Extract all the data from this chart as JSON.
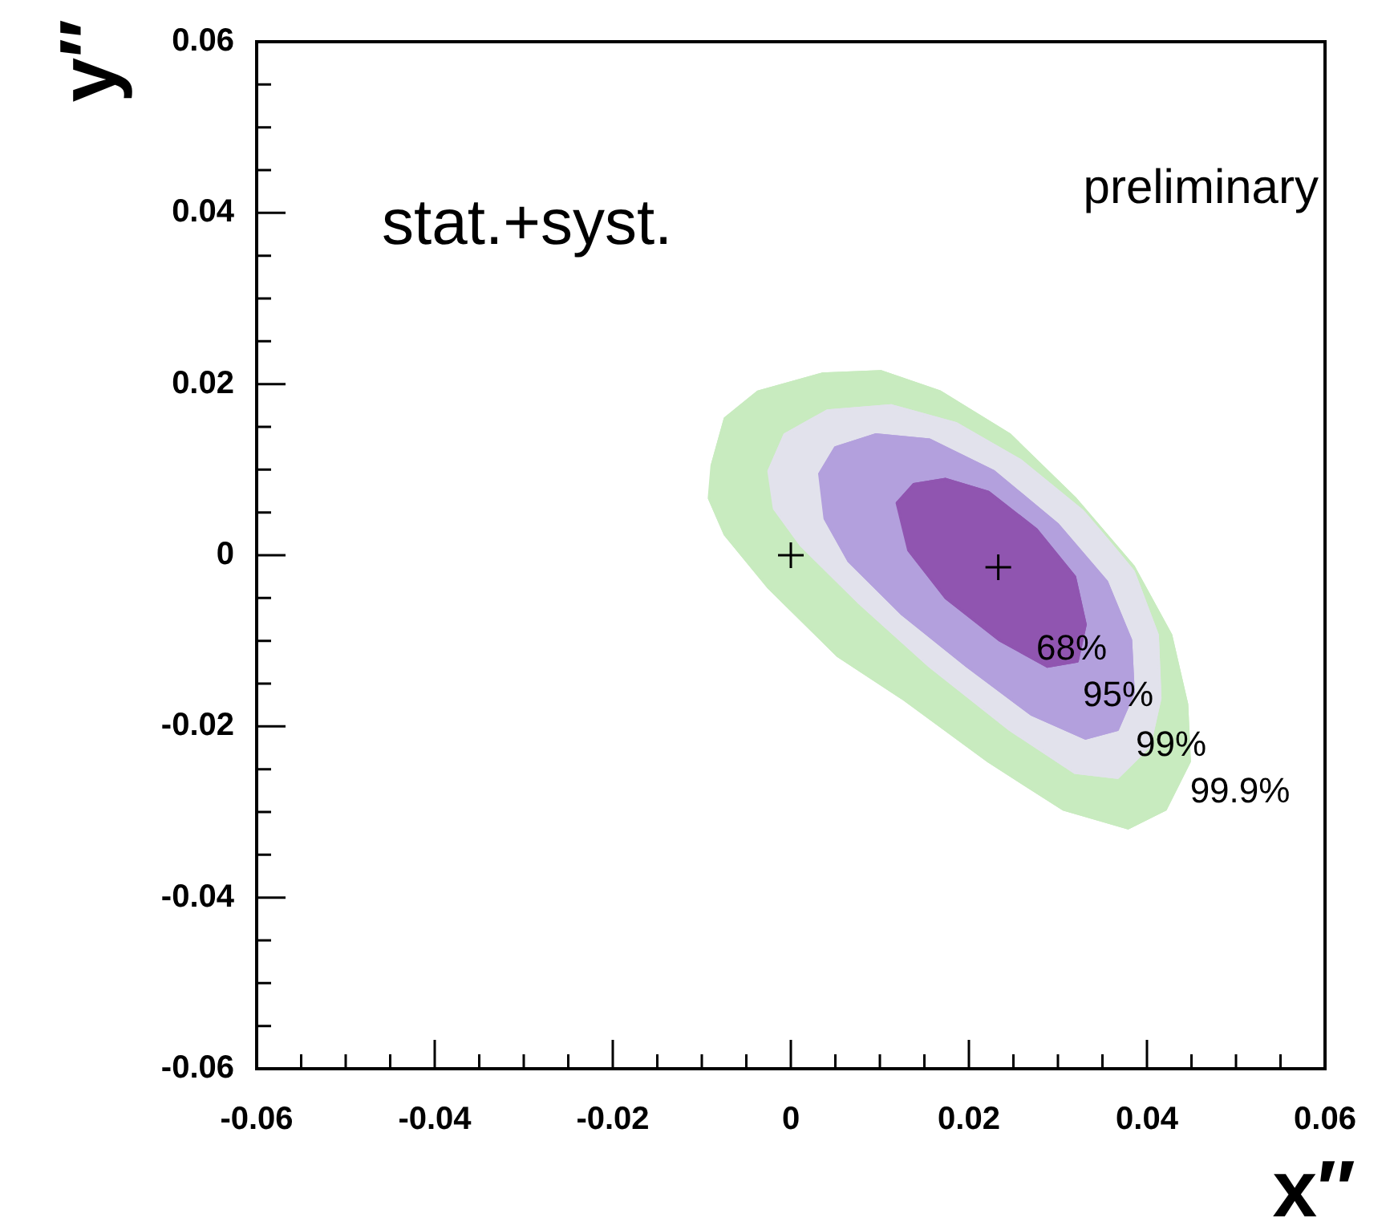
{
  "chart_data": {
    "type": "area",
    "xlabel": "x′′",
    "ylabel": "y′′",
    "xlim": [
      -0.06,
      0.06
    ],
    "ylim": [
      -0.06,
      0.06
    ],
    "xticks": [
      -0.06,
      {
        "value": -0.055,
        "label": null
      },
      {
        "value": -0.05,
        "label": null
      },
      {
        "value": -0.045,
        "label": null
      },
      -0.04,
      {
        "value": -0.035,
        "label": null
      },
      {
        "value": -0.03,
        "label": null
      },
      {
        "value": -0.025,
        "label": null
      },
      -0.02,
      {
        "value": -0.015,
        "label": null
      },
      {
        "value": -0.01,
        "label": null
      },
      {
        "value": -0.005,
        "label": null
      },
      0,
      {
        "value": 0.005,
        "label": null
      },
      {
        "value": 0.01,
        "label": null
      },
      {
        "value": 0.015,
        "label": null
      },
      0.02,
      {
        "value": 0.025,
        "label": null
      },
      {
        "value": 0.03,
        "label": null
      },
      {
        "value": 0.035,
        "label": null
      },
      0.04,
      {
        "value": 0.045,
        "label": null
      },
      {
        "value": 0.05,
        "label": null
      },
      {
        "value": 0.055,
        "label": null
      },
      0.06
    ],
    "yticks": [
      -0.06,
      {
        "value": -0.055,
        "label": null
      },
      {
        "value": -0.05,
        "label": null
      },
      {
        "value": -0.045,
        "label": null
      },
      -0.04,
      {
        "value": -0.035,
        "label": null
      },
      {
        "value": -0.03,
        "label": null
      },
      {
        "value": -0.025,
        "label": null
      },
      -0.02,
      {
        "value": -0.015,
        "label": null
      },
      {
        "value": -0.01,
        "label": null
      },
      {
        "value": -0.005,
        "label": null
      },
      0,
      {
        "value": 0.005,
        "label": null
      },
      {
        "value": 0.01,
        "label": null
      },
      {
        "value": 0.015,
        "label": null
      },
      0.02,
      {
        "value": 0.025,
        "label": null
      },
      {
        "value": 0.03,
        "label": null
      },
      {
        "value": 0.035,
        "label": null
      },
      0.04,
      {
        "value": 0.045,
        "label": null
      },
      {
        "value": 0.05,
        "label": null
      },
      {
        "value": 0.055,
        "label": null
      },
      0.06
    ],
    "grid": false,
    "legend": false,
    "series": [
      {
        "color": "#c8ebbf",
        "x": [
          -0.0089,
          -0.0074,
          -0.0037,
          0.0035,
          0.0101,
          0.0168,
          0.0246,
          0.0319,
          0.0385,
          0.0427,
          0.0445,
          0.0448,
          0.0421,
          0.0379,
          0.0306,
          0.0222,
          0.0125,
          0.0053,
          -0.0025,
          -0.0074,
          -0.0092
        ],
        "values": [
          0.0104,
          0.016,
          0.0191,
          0.0212,
          0.0215,
          0.0191,
          0.0141,
          0.0067,
          -0.0013,
          -0.0093,
          -0.0174,
          -0.0241,
          -0.0297,
          -0.0319,
          -0.0297,
          -0.0241,
          -0.0167,
          -0.0118,
          -0.0038,
          0.0024,
          0.0067
        ]
      },
      {
        "color": "#e2e2ec",
        "x": [
          -0.0025,
          -0.0007,
          0.0041,
          0.0113,
          0.0186,
          0.0258,
          0.0331,
          0.0385,
          0.0412,
          0.0415,
          0.0403,
          0.0367,
          0.0319,
          0.0246,
          0.0156,
          0.0077,
          0.0011,
          -0.0019
        ],
        "values": [
          0.0098,
          0.0141,
          0.0169,
          0.0175,
          0.0154,
          0.0111,
          0.0049,
          -0.0019,
          -0.0093,
          -0.0167,
          -0.0223,
          -0.026,
          -0.0254,
          -0.0204,
          -0.013,
          -0.0056,
          0.0012,
          0.0055
        ]
      },
      {
        "color": "#b3a0dd",
        "x": [
          0.0032,
          0.005,
          0.0095,
          0.0156,
          0.0228,
          0.03,
          0.0355,
          0.0382,
          0.0385,
          0.0367,
          0.0331,
          0.027,
          0.0198,
          0.0125,
          0.0065,
          0.0038
        ],
        "values": [
          0.0095,
          0.0126,
          0.0141,
          0.0135,
          0.0098,
          0.0036,
          -0.0031,
          -0.0099,
          -0.0161,
          -0.0204,
          -0.0214,
          -0.0186,
          -0.013,
          -0.0069,
          -0.0007,
          0.0043
        ]
      },
      {
        "color": "#9055b0",
        "x": [
          0.0119,
          0.0138,
          0.0174,
          0.0222,
          0.0276,
          0.0319,
          0.0331,
          0.0322,
          0.0288,
          0.0234,
          0.0174,
          0.0132
        ],
        "values": [
          0.0061,
          0.0083,
          0.0089,
          0.0074,
          0.003,
          -0.0025,
          -0.0081,
          -0.0124,
          -0.013,
          -0.0099,
          -0.005,
          0.0006
        ]
      },
      {
        "type": "scatter",
        "marker": "cross",
        "color": "#000000",
        "x": [
          0.0233
        ],
        "values": [
          -0.0014
        ]
      },
      {
        "type": "scatter",
        "marker": "cross",
        "color": "#000000",
        "x": [
          0
        ],
        "values": [
          0
        ]
      }
    ],
    "annotations": [
      "stat.+syst.",
      "preliminary",
      "68%",
      "95%",
      "99%",
      "99.9%"
    ]
  }
}
